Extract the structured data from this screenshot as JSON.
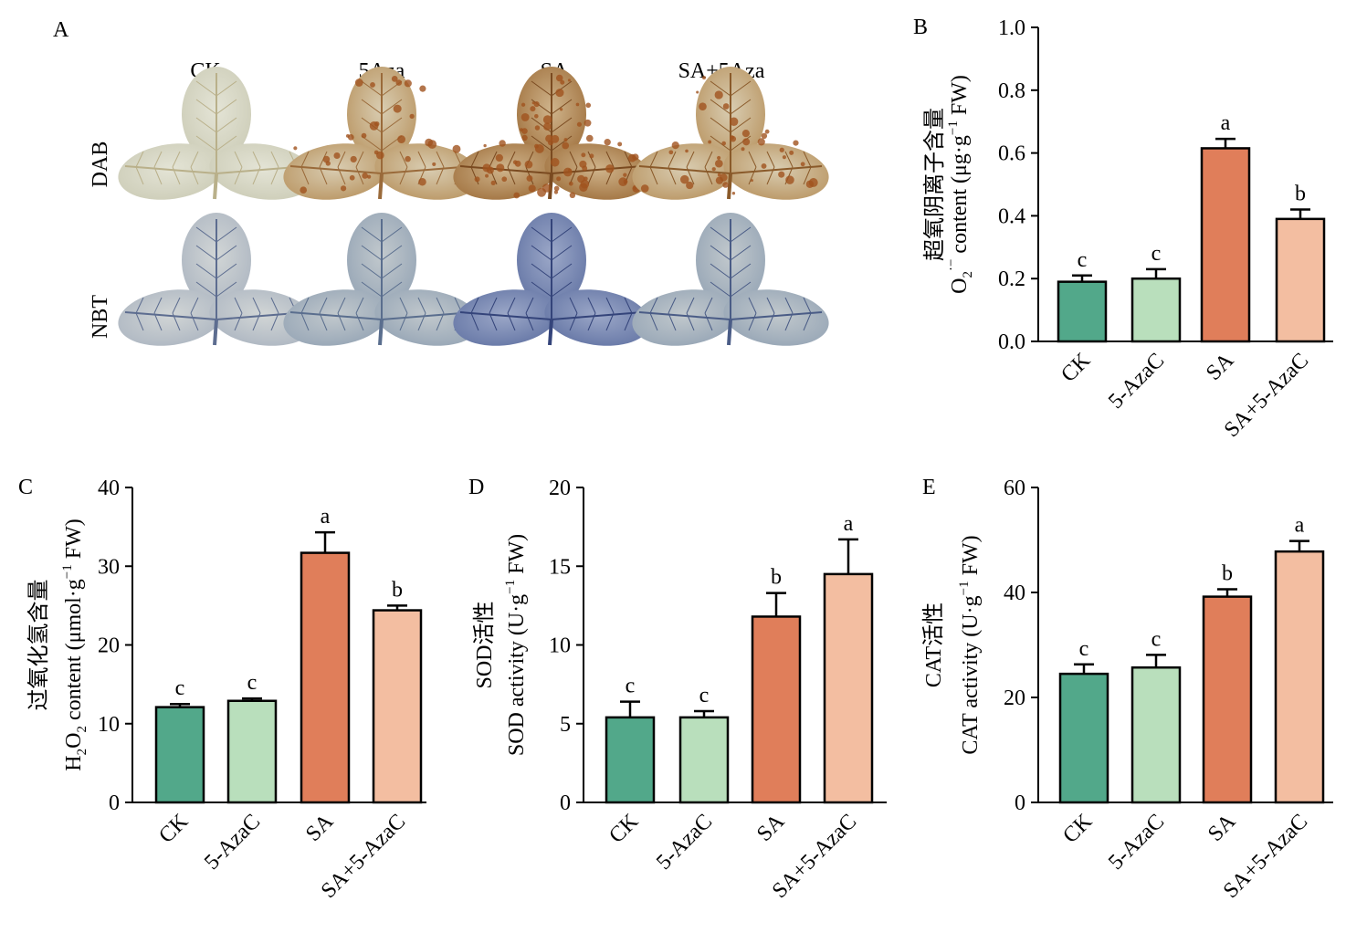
{
  "panel_a": {
    "label": "A",
    "columns": [
      "CK",
      "5Aza",
      "SA",
      "SA+5Aza"
    ],
    "rows": [
      "DAB",
      "NBT"
    ]
  },
  "colors": {
    "CK": "#52a88a",
    "5-AzaC": "#b9dfbc",
    "SA": "#e07e5a",
    "SA+5-AzaC": "#f3bea1"
  },
  "chart_data": [
    {
      "type": "bar",
      "panel": "B",
      "categories": [
        "CK",
        "5-AzaC",
        "SA",
        "SA+5-AzaC"
      ],
      "values": [
        0.19,
        0.2,
        0.615,
        0.39
      ],
      "errors": [
        0.02,
        0.03,
        0.03,
        0.03
      ],
      "letters": [
        "c",
        "c",
        "a",
        "b"
      ],
      "ylabel_cn": "超氧阴离子含量",
      "ylabel_en": "O2·− content (μg·g−1 FW)",
      "ylim": [
        0,
        1.0
      ],
      "yticks": [
        "0.0",
        "0.2",
        "0.4",
        "0.6",
        "0.8",
        "1.0"
      ]
    },
    {
      "type": "bar",
      "panel": "C",
      "categories": [
        "CK",
        "5-AzaC",
        "SA",
        "SA+5-AzaC"
      ],
      "values": [
        12.1,
        12.9,
        31.7,
        24.4
      ],
      "errors": [
        0.4,
        0.3,
        2.6,
        0.6
      ],
      "letters": [
        "c",
        "c",
        "a",
        "b"
      ],
      "ylabel_cn": "过氧化氢含量",
      "ylabel_en": "H2O2 content (μmol·g−1 FW)",
      "ylim": [
        0,
        40
      ],
      "yticks": [
        "0",
        "10",
        "20",
        "30",
        "40"
      ]
    },
    {
      "type": "bar",
      "panel": "D",
      "categories": [
        "CK",
        "5-AzaC",
        "SA",
        "SA+5-AzaC"
      ],
      "values": [
        5.4,
        5.4,
        11.8,
        14.5
      ],
      "errors": [
        1.0,
        0.4,
        1.5,
        2.2
      ],
      "letters": [
        "c",
        "c",
        "b",
        "a"
      ],
      "ylabel_cn": "SOD活性",
      "ylabel_en": "SOD activity (U·g−1 FW)",
      "ylim": [
        0,
        20
      ],
      "yticks": [
        "0",
        "5",
        "10",
        "15",
        "20"
      ]
    },
    {
      "type": "bar",
      "panel": "E",
      "categories": [
        "CK",
        "5-AzaC",
        "SA",
        "SA+5-AzaC"
      ],
      "values": [
        24.5,
        25.7,
        39.2,
        47.8
      ],
      "errors": [
        1.8,
        2.4,
        1.4,
        2.0
      ],
      "letters": [
        "c",
        "c",
        "b",
        "a"
      ],
      "ylabel_cn": "CAT活性",
      "ylabel_en": "CAT activity (U·g−1 FW)",
      "ylim": [
        0,
        60
      ],
      "yticks": [
        "0",
        "20",
        "40",
        "60"
      ]
    }
  ]
}
